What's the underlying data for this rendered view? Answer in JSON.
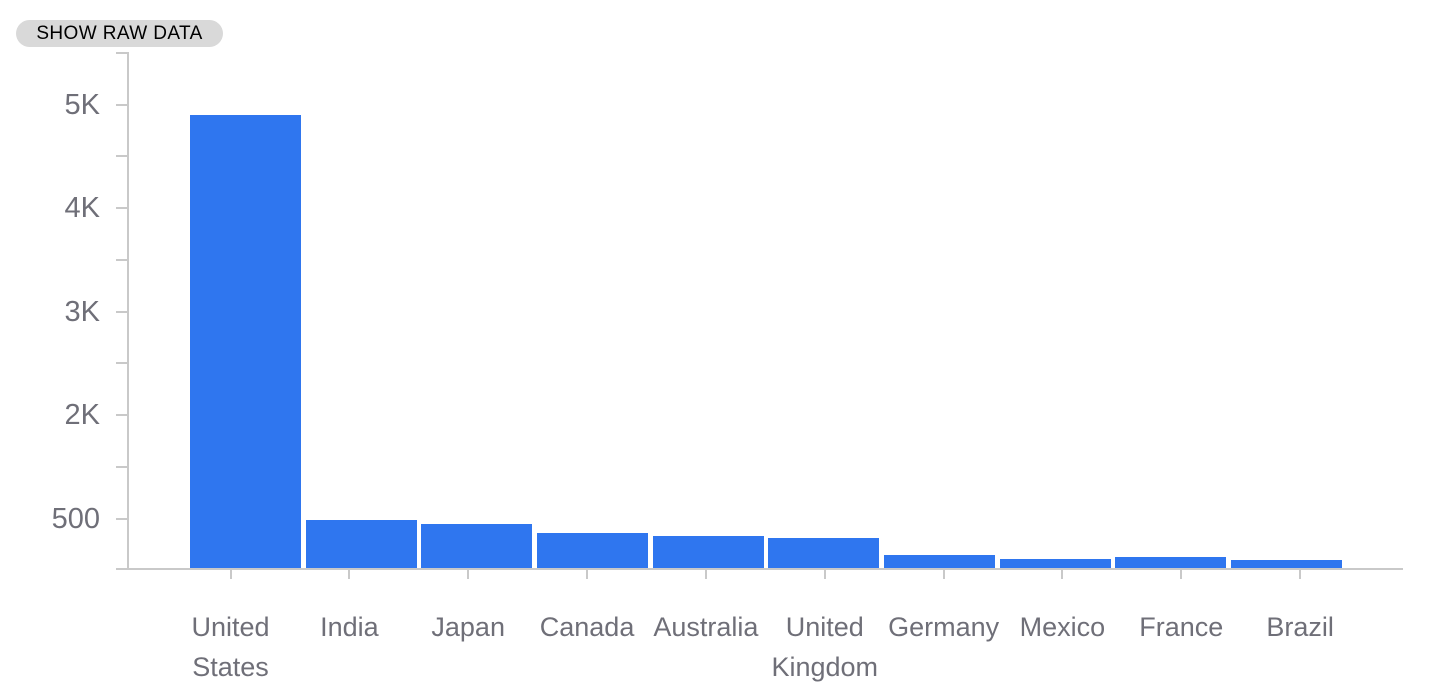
{
  "raw_data_button": {
    "label": "SHOW RAW DATA"
  },
  "chart_data": {
    "type": "bar",
    "title": "",
    "xlabel": "",
    "ylabel": "",
    "categories": [
      "United States",
      "India",
      "Japan",
      "Canada",
      "Australia",
      "United Kingdom",
      "Germany",
      "Mexico",
      "France",
      "Brazil"
    ],
    "values": [
      4860,
      515,
      470,
      375,
      345,
      320,
      140,
      95,
      115,
      85
    ],
    "y_tick_labels": [
      "5K",
      "4K",
      "3K",
      "2K",
      "500"
    ],
    "ylim": [
      0,
      5500
    ],
    "grid": false,
    "legend": "none",
    "colors": {
      "bar": "#2f76ef",
      "axis": "#c9c9c9",
      "label": "#6f6f78",
      "button_bg": "#d9d9d9",
      "button_text": "#000000"
    }
  }
}
